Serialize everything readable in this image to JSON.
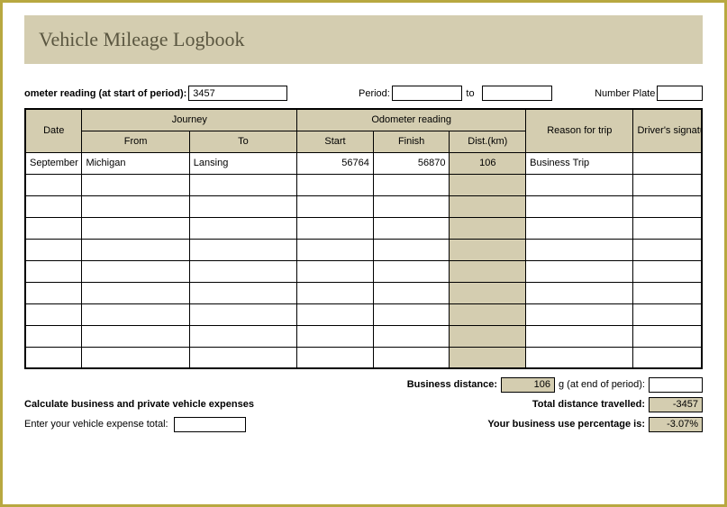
{
  "title": "Vehicle Mileage Logbook",
  "header": {
    "odometer_label": "ometer reading (at start of period):",
    "odometer_value": "3457",
    "period_label": "Period:",
    "period_start": "",
    "to_text": "to",
    "period_end": "",
    "plate_label": "Number Plate",
    "plate_value": ""
  },
  "table": {
    "columns": {
      "date": "Date",
      "journey": "Journey",
      "from": "From",
      "to": "To",
      "odometer": "Odometer reading",
      "start": "Start",
      "finish": "Finish",
      "dist": "Dist.(km)",
      "reason": "Reason for trip",
      "sig": "Driver's signature"
    },
    "rows": [
      {
        "date": "September",
        "from": "Michigan",
        "to": "Lansing",
        "start": "56764",
        "finish": "56870",
        "dist": "106",
        "reason": "Business Trip",
        "sig": ""
      },
      {
        "date": "",
        "from": "",
        "to": "",
        "start": "",
        "finish": "",
        "dist": "",
        "reason": "",
        "sig": ""
      },
      {
        "date": "",
        "from": "",
        "to": "",
        "start": "",
        "finish": "",
        "dist": "",
        "reason": "",
        "sig": ""
      },
      {
        "date": "",
        "from": "",
        "to": "",
        "start": "",
        "finish": "",
        "dist": "",
        "reason": "",
        "sig": ""
      },
      {
        "date": "",
        "from": "",
        "to": "",
        "start": "",
        "finish": "",
        "dist": "",
        "reason": "",
        "sig": ""
      },
      {
        "date": "",
        "from": "",
        "to": "",
        "start": "",
        "finish": "",
        "dist": "",
        "reason": "",
        "sig": ""
      },
      {
        "date": "",
        "from": "",
        "to": "",
        "start": "",
        "finish": "",
        "dist": "",
        "reason": "",
        "sig": ""
      },
      {
        "date": "",
        "from": "",
        "to": "",
        "start": "",
        "finish": "",
        "dist": "",
        "reason": "",
        "sig": ""
      },
      {
        "date": "",
        "from": "",
        "to": "",
        "start": "",
        "finish": "",
        "dist": "",
        "reason": "",
        "sig": ""
      },
      {
        "date": "",
        "from": "",
        "to": "",
        "start": "",
        "finish": "",
        "dist": "",
        "reason": "",
        "sig": ""
      }
    ]
  },
  "summary": {
    "business_distance_label": "Business distance:",
    "business_distance_value": "106",
    "end_period_label": "g (at end of period):",
    "end_period_value": "",
    "calc_heading": "Calculate business and private vehicle expenses",
    "total_distance_label": "Total distance travelled:",
    "total_distance_value": "-3457",
    "expense_label": "Enter your vehicle expense total:",
    "expense_value": "",
    "pct_label": "Your business use percentage is:",
    "pct_value": "-3.07%"
  },
  "styling": {
    "border_color": "#b8a840",
    "header_bg": "#d4cdb0",
    "title_color": "#5a5640",
    "body_font": "Arial",
    "title_font": "Georgia",
    "base_fontsize": 11,
    "title_fontsize": 22
  }
}
